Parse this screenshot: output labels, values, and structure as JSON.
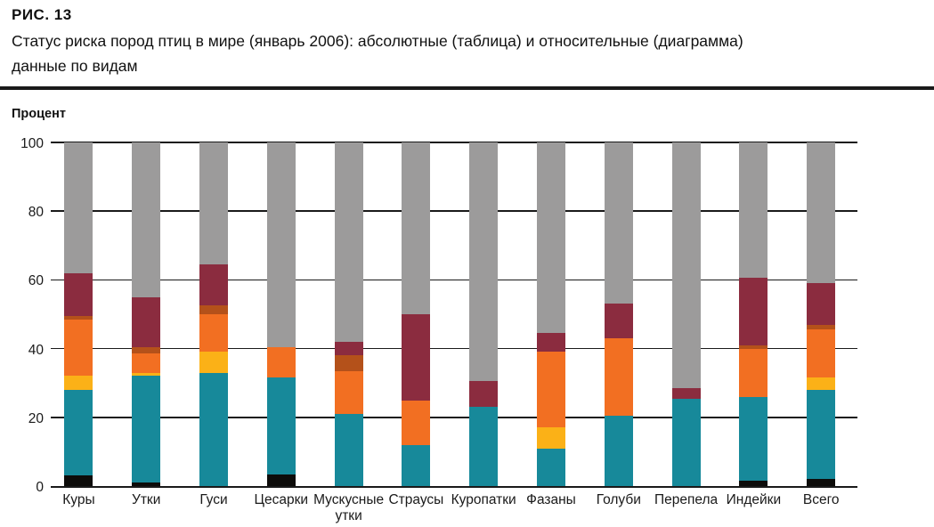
{
  "figure": {
    "label": "РИС.  13",
    "subtitle": "Статус риска пород птиц в мире (январь 2006): абсолютные (таблица) и относительные (диаграмма)\nданные по видам"
  },
  "chart_data": {
    "type": "bar",
    "stacked": true,
    "orientation": "vertical",
    "title": "",
    "xlabel": "",
    "ylabel": "Процент",
    "ylim": [
      0,
      100
    ],
    "yticks": [
      0,
      20,
      40,
      60,
      80,
      100
    ],
    "grid": true,
    "legend": "none",
    "categories": [
      "Куры",
      "Утки",
      "Гуси",
      "Цесарки",
      "Мускусные утки",
      "Страусы",
      "Куропатки",
      "Фазаны",
      "Голуби",
      "Перепела",
      "Индейки",
      "Всего"
    ],
    "series": [
      {
        "name": "black-segment",
        "color": "#0d0c0a",
        "values": [
          3,
          1,
          0,
          3.5,
          0,
          0,
          0,
          0,
          0,
          0,
          1.5,
          2
        ]
      },
      {
        "name": "teal-segment",
        "color": "#17899a",
        "values": [
          25,
          31,
          33,
          28,
          21,
          12,
          23,
          11,
          20.5,
          25.5,
          24.5,
          26
        ]
      },
      {
        "name": "yellow-segment",
        "color": "#fbb117",
        "values": [
          4,
          1,
          6,
          0,
          0,
          0,
          0,
          6,
          0,
          0,
          0,
          3.5
        ]
      },
      {
        "name": "orange-segment",
        "color": "#f26f22",
        "values": [
          16.5,
          5.5,
          11,
          9,
          12.5,
          13,
          0,
          22,
          22.5,
          0,
          14,
          14
        ]
      },
      {
        "name": "dark-orange-segment",
        "color": "#b4511a",
        "values": [
          1,
          2,
          2.5,
          0,
          4.5,
          0,
          0,
          0,
          0,
          0,
          1,
          1.5
        ]
      },
      {
        "name": "maroon-segment",
        "color": "#8b2c3f",
        "values": [
          12.5,
          14.5,
          12,
          0,
          4,
          25,
          7.5,
          5.5,
          10,
          3,
          19.5,
          12
        ]
      },
      {
        "name": "gray-segment",
        "color": "#9c9b9b",
        "values": [
          38,
          45,
          35.5,
          59.5,
          58,
          50,
          69.5,
          55.5,
          47,
          71.5,
          39.5,
          41
        ]
      }
    ]
  }
}
